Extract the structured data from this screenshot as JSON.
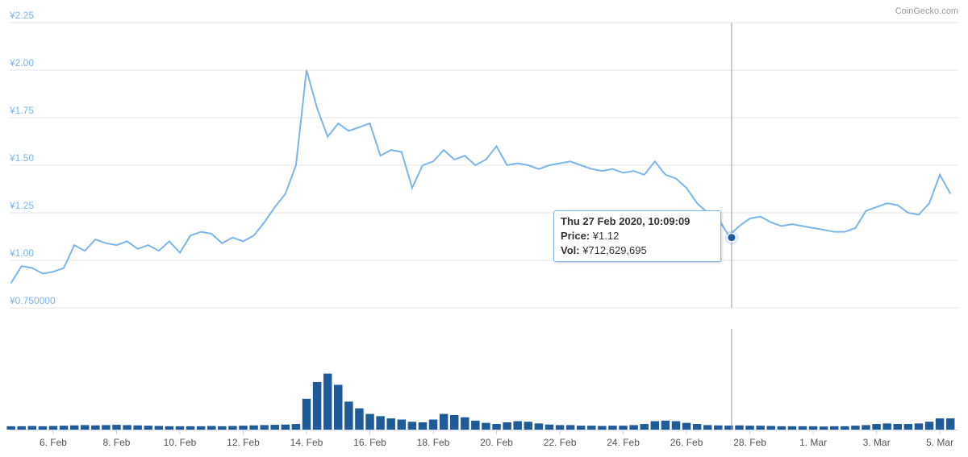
{
  "credit": "CoinGecko.com",
  "chart_data": [
    {
      "type": "line",
      "color": "#7cb5ec",
      "xlim": [
        "2020-02-04T15:00",
        "2020-03-05T14:00"
      ],
      "ylim": [
        0.75,
        2.25
      ],
      "yticks": [
        {
          "value": 2.25,
          "label": "¥2.25"
        },
        {
          "value": 2.0,
          "label": "¥2.00"
        },
        {
          "value": 1.75,
          "label": "¥1.75"
        },
        {
          "value": 1.5,
          "label": "¥1.50"
        },
        {
          "value": 1.25,
          "label": "¥1.25"
        },
        {
          "value": 1.0,
          "label": "¥1.00"
        },
        {
          "value": 0.75,
          "label": "¥0.750000"
        }
      ],
      "grid": true,
      "x": [
        "2020-02-04T16:00",
        "2020-02-05T00:00",
        "2020-02-05T08:00",
        "2020-02-05T16:00",
        "2020-02-06T00:00",
        "2020-02-06T08:00",
        "2020-02-06T16:00",
        "2020-02-07T00:00",
        "2020-02-07T08:00",
        "2020-02-07T16:00",
        "2020-02-08T00:00",
        "2020-02-08T08:00",
        "2020-02-08T16:00",
        "2020-02-09T00:00",
        "2020-02-09T08:00",
        "2020-02-09T16:00",
        "2020-02-10T00:00",
        "2020-02-10T08:00",
        "2020-02-10T16:00",
        "2020-02-11T00:00",
        "2020-02-11T08:00",
        "2020-02-11T16:00",
        "2020-02-12T00:00",
        "2020-02-12T08:00",
        "2020-02-12T16:00",
        "2020-02-13T00:00",
        "2020-02-13T08:00",
        "2020-02-13T16:00",
        "2020-02-14T00:00",
        "2020-02-14T08:00",
        "2020-02-14T16:00",
        "2020-02-15T00:00",
        "2020-02-15T08:00",
        "2020-02-15T16:00",
        "2020-02-16T00:00",
        "2020-02-16T08:00",
        "2020-02-16T16:00",
        "2020-02-17T00:00",
        "2020-02-17T08:00",
        "2020-02-17T16:00",
        "2020-02-18T00:00",
        "2020-02-18T08:00",
        "2020-02-18T16:00",
        "2020-02-19T00:00",
        "2020-02-19T08:00",
        "2020-02-19T16:00",
        "2020-02-20T00:00",
        "2020-02-20T08:00",
        "2020-02-20T16:00",
        "2020-02-21T00:00",
        "2020-02-21T08:00",
        "2020-02-21T16:00",
        "2020-02-22T00:00",
        "2020-02-22T08:00",
        "2020-02-22T16:00",
        "2020-02-23T00:00",
        "2020-02-23T08:00",
        "2020-02-23T16:00",
        "2020-02-24T00:00",
        "2020-02-24T08:00",
        "2020-02-24T16:00",
        "2020-02-25T00:00",
        "2020-02-25T08:00",
        "2020-02-25T16:00",
        "2020-02-26T00:00",
        "2020-02-26T08:00",
        "2020-02-26T16:00",
        "2020-02-27T00:00",
        "2020-02-27T08:00",
        "2020-02-27T16:00",
        "2020-02-28T00:00",
        "2020-02-28T08:00",
        "2020-02-28T16:00",
        "2020-02-29T00:00",
        "2020-02-29T08:00",
        "2020-02-29T16:00",
        "2020-03-01T00:00",
        "2020-03-01T08:00",
        "2020-03-01T16:00",
        "2020-03-02T00:00",
        "2020-03-02T08:00",
        "2020-03-02T16:00",
        "2020-03-03T00:00",
        "2020-03-03T08:00",
        "2020-03-03T16:00",
        "2020-03-04T00:00",
        "2020-03-04T08:00",
        "2020-03-04T16:00",
        "2020-03-05T00:00",
        "2020-03-05T08:00"
      ],
      "values": [
        0.88,
        0.97,
        0.96,
        0.93,
        0.94,
        0.96,
        1.08,
        1.05,
        1.11,
        1.09,
        1.08,
        1.1,
        1.06,
        1.08,
        1.05,
        1.1,
        1.04,
        1.13,
        1.15,
        1.14,
        1.09,
        1.12,
        1.1,
        1.13,
        1.2,
        1.28,
        1.35,
        1.5,
        2.0,
        1.8,
        1.65,
        1.72,
        1.68,
        1.7,
        1.72,
        1.55,
        1.58,
        1.57,
        1.38,
        1.5,
        1.52,
        1.58,
        1.53,
        1.55,
        1.5,
        1.53,
        1.6,
        1.5,
        1.51,
        1.5,
        1.48,
        1.5,
        1.51,
        1.52,
        1.5,
        1.48,
        1.47,
        1.48,
        1.46,
        1.47,
        1.45,
        1.52,
        1.45,
        1.43,
        1.38,
        1.3,
        1.25,
        1.22,
        1.13,
        1.18,
        1.22,
        1.23,
        1.2,
        1.18,
        1.19,
        1.18,
        1.17,
        1.16,
        1.15,
        1.15,
        1.17,
        1.26,
        1.28,
        1.3,
        1.29,
        1.25,
        1.24,
        1.3,
        1.45,
        1.35
      ],
      "tooltip": {
        "title": "Thu 27 Feb 2020, 10:09:09",
        "x": "2020-02-27T10:09:09",
        "price_title": "Price:",
        "price": 1.12,
        "price_label": "¥1.12",
        "vol_title": "Vol:",
        "vol": 712629695,
        "vol_label": "¥712,629,695"
      }
    },
    {
      "type": "bar",
      "color": "#1f5b99",
      "xlim": [
        "2020-02-04T15:00",
        "2020-03-05T14:00"
      ],
      "ylim": [
        0,
        18000000000
      ],
      "xticks": [
        {
          "value": "2020-02-06T00:00",
          "label": "6. Feb"
        },
        {
          "value": "2020-02-08T00:00",
          "label": "8. Feb"
        },
        {
          "value": "2020-02-10T00:00",
          "label": "10. Feb"
        },
        {
          "value": "2020-02-12T00:00",
          "label": "12. Feb"
        },
        {
          "value": "2020-02-14T00:00",
          "label": "14. Feb"
        },
        {
          "value": "2020-02-16T00:00",
          "label": "16. Feb"
        },
        {
          "value": "2020-02-18T00:00",
          "label": "18. Feb"
        },
        {
          "value": "2020-02-20T00:00",
          "label": "20. Feb"
        },
        {
          "value": "2020-02-22T00:00",
          "label": "22. Feb"
        },
        {
          "value": "2020-02-24T00:00",
          "label": "24. Feb"
        },
        {
          "value": "2020-02-26T00:00",
          "label": "26. Feb"
        },
        {
          "value": "2020-02-28T00:00",
          "label": "28. Feb"
        },
        {
          "value": "2020-03-01T00:00",
          "label": "1. Mar"
        },
        {
          "value": "2020-03-03T00:00",
          "label": "3. Mar"
        },
        {
          "value": "2020-03-05T00:00",
          "label": "5. Mar"
        }
      ],
      "x": [
        "2020-02-04T16:00",
        "2020-02-05T00:00",
        "2020-02-05T08:00",
        "2020-02-05T16:00",
        "2020-02-06T00:00",
        "2020-02-06T08:00",
        "2020-02-06T16:00",
        "2020-02-07T00:00",
        "2020-02-07T08:00",
        "2020-02-07T16:00",
        "2020-02-08T00:00",
        "2020-02-08T08:00",
        "2020-02-08T16:00",
        "2020-02-09T00:00",
        "2020-02-09T08:00",
        "2020-02-09T16:00",
        "2020-02-10T00:00",
        "2020-02-10T08:00",
        "2020-02-10T16:00",
        "2020-02-11T00:00",
        "2020-02-11T08:00",
        "2020-02-11T16:00",
        "2020-02-12T00:00",
        "2020-02-12T08:00",
        "2020-02-12T16:00",
        "2020-02-13T00:00",
        "2020-02-13T08:00",
        "2020-02-13T16:00",
        "2020-02-14T00:00",
        "2020-02-14T08:00",
        "2020-02-14T16:00",
        "2020-02-15T00:00",
        "2020-02-15T08:00",
        "2020-02-15T16:00",
        "2020-02-16T00:00",
        "2020-02-16T08:00",
        "2020-02-16T16:00",
        "2020-02-17T00:00",
        "2020-02-17T08:00",
        "2020-02-17T16:00",
        "2020-02-18T00:00",
        "2020-02-18T08:00",
        "2020-02-18T16:00",
        "2020-02-19T00:00",
        "2020-02-19T08:00",
        "2020-02-19T16:00",
        "2020-02-20T00:00",
        "2020-02-20T08:00",
        "2020-02-20T16:00",
        "2020-02-21T00:00",
        "2020-02-21T08:00",
        "2020-02-21T16:00",
        "2020-02-22T00:00",
        "2020-02-22T08:00",
        "2020-02-22T16:00",
        "2020-02-23T00:00",
        "2020-02-23T08:00",
        "2020-02-23T16:00",
        "2020-02-24T00:00",
        "2020-02-24T08:00",
        "2020-02-24T16:00",
        "2020-02-25T00:00",
        "2020-02-25T08:00",
        "2020-02-25T16:00",
        "2020-02-26T00:00",
        "2020-02-26T08:00",
        "2020-02-26T16:00",
        "2020-02-27T00:00",
        "2020-02-27T08:00",
        "2020-02-27T16:00",
        "2020-02-28T00:00",
        "2020-02-28T08:00",
        "2020-02-28T16:00",
        "2020-02-29T00:00",
        "2020-02-29T08:00",
        "2020-02-29T16:00",
        "2020-03-01T00:00",
        "2020-03-01T08:00",
        "2020-03-01T16:00",
        "2020-03-02T00:00",
        "2020-03-02T08:00",
        "2020-03-02T16:00",
        "2020-03-03T00:00",
        "2020-03-03T08:00",
        "2020-03-03T16:00",
        "2020-03-04T00:00",
        "2020-03-04T08:00",
        "2020-03-04T16:00",
        "2020-03-05T00:00",
        "2020-03-05T08:00"
      ],
      "values": [
        600000000,
        600000000,
        650000000,
        600000000,
        650000000,
        700000000,
        750000000,
        800000000,
        750000000,
        800000000,
        850000000,
        800000000,
        750000000,
        700000000,
        650000000,
        600000000,
        600000000,
        600000000,
        600000000,
        650000000,
        600000000,
        650000000,
        700000000,
        750000000,
        800000000,
        850000000,
        900000000,
        1000000000,
        5500000000,
        8500000000,
        10000000000,
        8000000000,
        5000000000,
        3800000000,
        2800000000,
        2400000000,
        2000000000,
        1800000000,
        1400000000,
        1300000000,
        1800000000,
        2800000000,
        2600000000,
        2200000000,
        1600000000,
        1200000000,
        1000000000,
        1300000000,
        1500000000,
        1400000000,
        1100000000,
        900000000,
        800000000,
        800000000,
        700000000,
        700000000,
        650000000,
        700000000,
        700000000,
        800000000,
        1000000000,
        1500000000,
        1600000000,
        1500000000,
        1200000000,
        1000000000,
        800000000,
        750000000,
        720000000,
        750000000,
        700000000,
        700000000,
        650000000,
        600000000,
        600000000,
        600000000,
        600000000,
        550000000,
        600000000,
        600000000,
        700000000,
        800000000,
        1000000000,
        1100000000,
        1000000000,
        1000000000,
        1100000000,
        1400000000,
        2000000000,
        2000000000
      ]
    }
  ]
}
